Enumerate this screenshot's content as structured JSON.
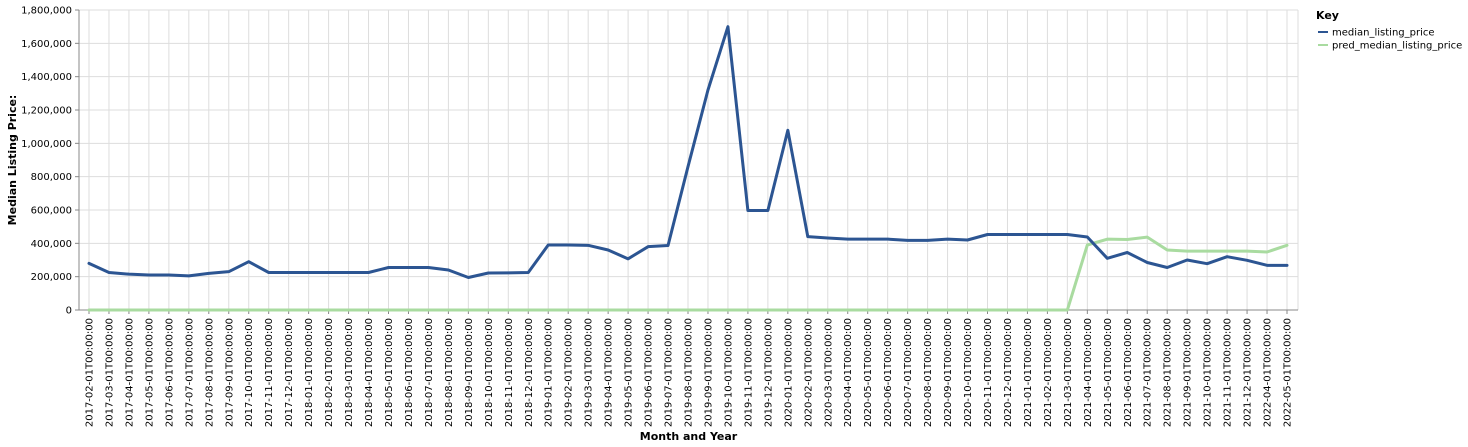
{
  "chart_data": {
    "type": "line",
    "xlabel": "Month and Year",
    "ylabel": "Median Listing Price:",
    "ylim": [
      0,
      1800000
    ],
    "yticks": [
      "0",
      "200,000",
      "400,000",
      "600,000",
      "800,000",
      "1,000,000",
      "1,200,000",
      "1,400,000",
      "1,600,000",
      "1,800,000"
    ],
    "ytick_values": [
      0,
      200000,
      400000,
      600000,
      800000,
      1000000,
      1200000,
      1400000,
      1600000,
      1800000
    ],
    "grid": true,
    "legend": {
      "title": "Key",
      "placement": "right"
    },
    "x": [
      "2017-02-01T00:00:00",
      "2017-03-01T00:00:00",
      "2017-04-01T00:00:00",
      "2017-05-01T00:00:00",
      "2017-06-01T00:00:00",
      "2017-07-01T00:00:00",
      "2017-08-01T00:00:00",
      "2017-09-01T00:00:00",
      "2017-10-01T00:00:00",
      "2017-11-01T00:00:00",
      "2017-12-01T00:00:00",
      "2018-01-01T00:00:00",
      "2018-02-01T00:00:00",
      "2018-03-01T00:00:00",
      "2018-04-01T00:00:00",
      "2018-05-01T00:00:00",
      "2018-06-01T00:00:00",
      "2018-07-01T00:00:00",
      "2018-08-01T00:00:00",
      "2018-09-01T00:00:00",
      "2018-10-01T00:00:00",
      "2018-11-01T00:00:00",
      "2018-12-01T00:00:00",
      "2019-01-01T00:00:00",
      "2019-02-01T00:00:00",
      "2019-03-01T00:00:00",
      "2019-04-01T00:00:00",
      "2019-05-01T00:00:00",
      "2019-06-01T00:00:00",
      "2019-07-01T00:00:00",
      "2019-08-01T00:00:00",
      "2019-09-01T00:00:00",
      "2019-10-01T00:00:00",
      "2019-11-01T00:00:00",
      "2019-12-01T00:00:00",
      "2020-01-01T00:00:00",
      "2020-02-01T00:00:00",
      "2020-03-01T00:00:00",
      "2020-04-01T00:00:00",
      "2020-05-01T00:00:00",
      "2020-06-01T00:00:00",
      "2020-07-01T00:00:00",
      "2020-08-01T00:00:00",
      "2020-09-01T00:00:00",
      "2020-10-01T00:00:00",
      "2020-11-01T00:00:00",
      "2020-12-01T00:00:00",
      "2021-01-01T00:00:00",
      "2021-02-01T00:00:00",
      "2021-03-01T00:00:00",
      "2021-04-01T00:00:00",
      "2021-05-01T00:00:00",
      "2021-06-01T00:00:00",
      "2021-07-01T00:00:00",
      "2021-08-01T00:00:00",
      "2021-09-01T00:00:00",
      "2021-10-01T00:00:00",
      "2021-11-01T00:00:00",
      "2021-12-01T00:00:00",
      "2022-04-01T00:00:00",
      "2022-05-01T00:00:00"
    ],
    "series": [
      {
        "name": "median_listing_price",
        "color": "#2c5592",
        "values": [
          280000,
          225000,
          215000,
          210000,
          210000,
          205000,
          220000,
          230000,
          290000,
          225000,
          225000,
          225000,
          225000,
          225000,
          225000,
          255000,
          255000,
          255000,
          240000,
          195000,
          222000,
          223000,
          225000,
          390000,
          390000,
          388000,
          360000,
          307000,
          380000,
          387000,
          860000,
          1320000,
          1700000,
          597000,
          597000,
          1078000,
          440000,
          432000,
          425000,
          425000,
          425000,
          418000,
          418000,
          425000,
          420000,
          453000,
          453000,
          453000,
          453000,
          453000,
          438000,
          310000,
          345000,
          285000,
          255000,
          300000,
          278000,
          320000,
          298000,
          268000,
          268000
        ]
      },
      {
        "name": "pred_median_listing_price",
        "color": "#a9dba0",
        "values": [
          0,
          0,
          0,
          0,
          0,
          0,
          0,
          0,
          0,
          0,
          0,
          0,
          0,
          0,
          0,
          0,
          0,
          0,
          0,
          0,
          0,
          0,
          0,
          0,
          0,
          0,
          0,
          0,
          0,
          0,
          0,
          0,
          0,
          0,
          0,
          0,
          0,
          0,
          0,
          0,
          0,
          0,
          0,
          0,
          0,
          0,
          0,
          0,
          0,
          0,
          390000,
          425000,
          423000,
          437000,
          360000,
          353000,
          353000,
          353000,
          353000,
          348000,
          388000
        ]
      }
    ]
  }
}
